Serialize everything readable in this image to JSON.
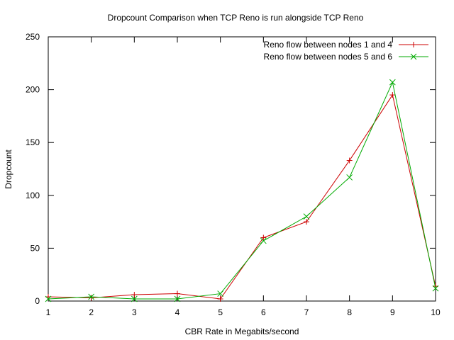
{
  "chart_data": {
    "type": "line",
    "title": "Dropcount Comparison when TCP Reno is run alongside TCP Reno",
    "xlabel": "CBR Rate in Megabits/second",
    "ylabel": "Dropcount",
    "xlim": [
      1,
      10
    ],
    "ylim": [
      0,
      250
    ],
    "xticks": [
      1,
      2,
      3,
      4,
      5,
      6,
      7,
      8,
      9,
      10
    ],
    "yticks": [
      0,
      50,
      100,
      150,
      200,
      250
    ],
    "grid": false,
    "legend_position": "top-right",
    "x": [
      1,
      2,
      3,
      4,
      5,
      6,
      7,
      8,
      9,
      10
    ],
    "series": [
      {
        "name": "Reno flow between nodes 1 and 4",
        "color": "#cc0000",
        "marker": "plus",
        "values": [
          4,
          3,
          6,
          7,
          2,
          60,
          75,
          133,
          195,
          14
        ]
      },
      {
        "name": "Reno flow between nodes 5 and 6",
        "color": "#00aa00",
        "marker": "cross",
        "values": [
          2,
          4,
          2,
          2,
          7,
          57,
          80,
          117,
          207,
          12
        ]
      }
    ]
  }
}
